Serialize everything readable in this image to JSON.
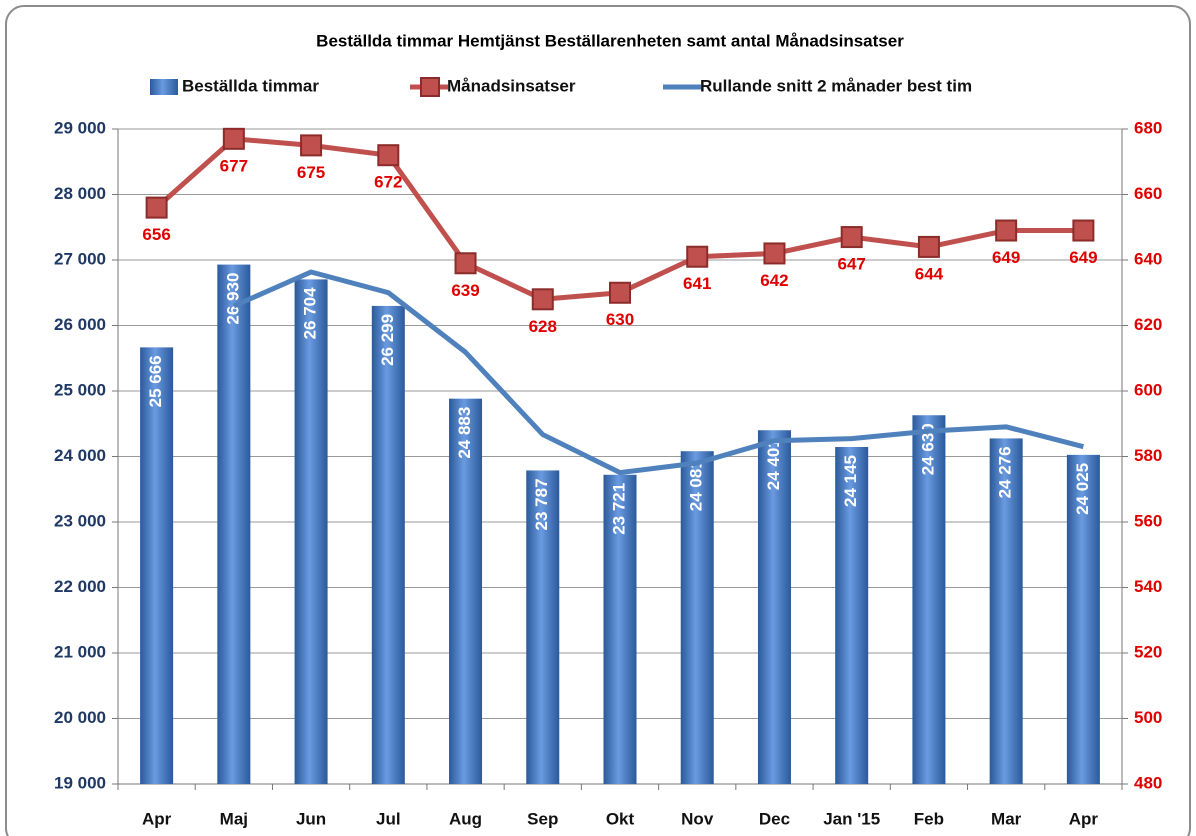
{
  "chart_data": {
    "type": "bar",
    "title": "Beställda timmar Hemtjänst Beställarenheten samt antal Månadsinsatser",
    "categories": [
      "Apr",
      "Maj",
      "Jun",
      "Jul",
      "Aug",
      "Sep",
      "Okt",
      "Nov",
      "Dec",
      "Jan '15",
      "Feb",
      "Mar",
      "Apr"
    ],
    "series": [
      {
        "name": "Beställda timmar",
        "type": "bar",
        "color": "#3f74b8",
        "values": [
          25666,
          26930,
          26704,
          26299,
          24883,
          23787,
          23721,
          24081,
          24401,
          24145,
          24630,
          24276,
          24025
        ],
        "value_labels": [
          "25 666",
          "26 930",
          "26 704",
          "26 299",
          "24 883",
          "23 787",
          "23 721",
          "24 081",
          "24 401",
          "24 145",
          "24 630",
          "24 276",
          "24 025"
        ]
      },
      {
        "name": "Månadsinsatser",
        "type": "line",
        "axis": "y2",
        "color": "#c0504d",
        "markers": true,
        "values": [
          656,
          677,
          675,
          672,
          639,
          628,
          630,
          641,
          642,
          647,
          644,
          649,
          649
        ]
      },
      {
        "name": "Rullande snitt 2 månader best tim",
        "type": "line",
        "color": "#4f81bd",
        "values": [
          null,
          26298,
          26817,
          26501.5,
          25591,
          24335,
          23754,
          23901,
          24241,
          24273,
          24387.5,
          24453,
          24150.5
        ]
      }
    ],
    "ylim": [
      19000,
      29000
    ],
    "yticks": [
      {
        "value": 19000,
        "label": "19 000"
      },
      {
        "value": 20000,
        "label": "20 000"
      },
      {
        "value": 21000,
        "label": "21 000"
      },
      {
        "value": 22000,
        "label": "22 000"
      },
      {
        "value": 23000,
        "label": "23 000"
      },
      {
        "value": 24000,
        "label": "24 000"
      },
      {
        "value": 25000,
        "label": "25 000"
      },
      {
        "value": 26000,
        "label": "26 000"
      },
      {
        "value": 27000,
        "label": "27 000"
      },
      {
        "value": 28000,
        "label": "28 000"
      },
      {
        "value": 29000,
        "label": "29 000"
      }
    ],
    "y2lim": [
      480,
      680
    ],
    "y2ticks": [
      480,
      500,
      520,
      540,
      560,
      580,
      600,
      620,
      640,
      660,
      680
    ],
    "grid": true,
    "legend": "top"
  }
}
